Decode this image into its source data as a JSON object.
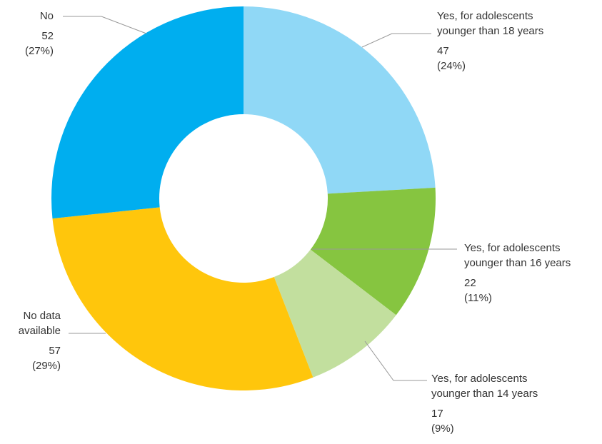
{
  "chart_data": {
    "type": "pie",
    "donut": true,
    "slices": [
      {
        "label_line1": "Yes, for adolescents",
        "label_line2": "younger than 18 years",
        "value": 47,
        "percent": "(24%)",
        "color": "#90D8F6"
      },
      {
        "label_line1": "Yes, for adolescents",
        "label_line2": "younger than 16 years",
        "value": 22,
        "percent": "(11%)",
        "color": "#86C540"
      },
      {
        "label_line1": "Yes, for adolescents",
        "label_line2": "younger than 14 years",
        "value": 17,
        "percent": "(9%)",
        "color": "#C2DF9E"
      },
      {
        "label_line1": "No data",
        "label_line2": "available",
        "value": 57,
        "percent": "(29%)",
        "color": "#FFC60C"
      },
      {
        "label_line1": "No",
        "label_line2": "",
        "value": 52,
        "percent": "(27%)",
        "color": "#00AEEF"
      }
    ],
    "leader_line_color": "#999999"
  }
}
